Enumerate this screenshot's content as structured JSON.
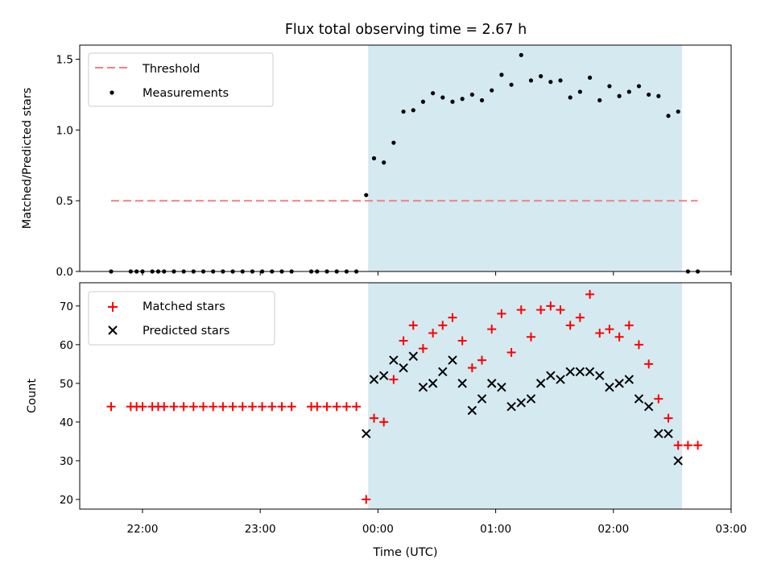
{
  "chart_data": {
    "title": "Flux total observing time = 2.67 h",
    "xlabel": "Time (UTC)",
    "x_ticks": [
      "22:00",
      "23:00",
      "00:00",
      "01:00",
      "02:00",
      "03:00"
    ],
    "x_range": [
      "21:28",
      "03:00"
    ],
    "shaded_interval": [
      "23:55",
      "02:35"
    ],
    "shaded_color": "#d4eaf0",
    "times": [
      "21:44",
      "21:54",
      "21:57",
      "22:00",
      "22:05",
      "22:08",
      "22:11",
      "22:16",
      "22:21",
      "22:26",
      "22:31",
      "22:36",
      "22:41",
      "22:46",
      "22:51",
      "22:56",
      "23:01",
      "23:06",
      "23:11",
      "23:16",
      "23:26",
      "23:29",
      "23:34",
      "23:39",
      "23:44",
      "23:49",
      "23:54",
      "23:58",
      "00:03",
      "00:08",
      "00:13",
      "00:18",
      "00:23",
      "00:28",
      "00:33",
      "00:38",
      "00:43",
      "00:48",
      "00:53",
      "00:58",
      "01:03",
      "01:08",
      "01:13",
      "01:18",
      "01:23",
      "01:28",
      "01:33",
      "01:38",
      "01:43",
      "01:48",
      "01:53",
      "01:58",
      "02:03",
      "02:08",
      "02:13",
      "02:18",
      "02:23",
      "02:28",
      "02:33",
      "02:38",
      "02:43"
    ],
    "plots": [
      {
        "type": "scatter",
        "ylabel": "Matched/Predicted stars",
        "ylim": [
          0,
          1.6
        ],
        "y_ticks": [
          "0.0",
          "0.5",
          "1.0",
          "1.5"
        ],
        "threshold": 0.5,
        "threshold_color": "#f08080",
        "threshold_range": [
          "21:44",
          "02:43"
        ],
        "extra_points": [
          {
            "x": "02:38",
            "y": 0
          },
          {
            "x": "02:43",
            "y": 0
          }
        ],
        "legend": {
          "placement": "upper-left",
          "entries": [
            "Threshold",
            "Measurements"
          ]
        },
        "series": [
          {
            "name": "Threshold",
            "type": "line",
            "color": "#f08080"
          },
          {
            "name": "Measurements",
            "type": "scatter",
            "color": "#000000",
            "values": [
              0,
              0,
              0,
              0,
              0,
              0,
              0,
              0,
              0,
              0,
              0,
              0,
              0,
              0,
              0,
              0,
              0,
              0,
              0,
              0,
              0,
              0,
              0,
              0,
              0,
              0,
              0.54,
              0.8,
              0.77,
              0.91,
              1.13,
              1.14,
              1.2,
              1.26,
              1.23,
              1.2,
              1.22,
              1.25,
              1.21,
              1.28,
              1.39,
              1.32,
              1.53,
              1.35,
              1.38,
              1.34,
              1.35,
              1.23,
              1.27,
              1.37,
              1.21,
              1.31,
              1.24,
              1.27,
              1.31,
              1.25,
              1.24,
              1.1,
              1.13,
              null,
              null
            ]
          }
        ]
      },
      {
        "type": "scatter",
        "ylabel": "Count",
        "ylim": [
          17.5,
          76
        ],
        "y_ticks": [
          "20",
          "30",
          "40",
          "50",
          "60",
          "70"
        ],
        "legend": {
          "placement": "upper-left",
          "entries": [
            "Matched stars",
            "Predicted stars"
          ]
        },
        "series": [
          {
            "name": "Matched stars",
            "marker": "plus",
            "color": "#ff0000",
            "values": [
              44,
              44,
              44,
              44,
              44,
              44,
              44,
              44,
              44,
              44,
              44,
              44,
              44,
              44,
              44,
              44,
              44,
              44,
              44,
              44,
              44,
              44,
              44,
              44,
              44,
              44,
              20,
              41,
              40,
              51,
              61,
              65,
              59,
              63,
              65,
              67,
              61,
              54,
              56,
              64,
              68,
              58,
              69,
              62,
              69,
              70,
              69,
              65,
              67,
              73,
              63,
              64,
              62,
              65,
              60,
              55,
              46,
              41,
              34,
              34,
              34
            ]
          },
          {
            "name": "Predicted stars",
            "marker": "x",
            "color": "#000000",
            "values": [
              null,
              null,
              null,
              null,
              null,
              null,
              null,
              null,
              null,
              null,
              null,
              null,
              null,
              null,
              null,
              null,
              null,
              null,
              null,
              null,
              null,
              null,
              null,
              null,
              null,
              null,
              37,
              51,
              52,
              56,
              54,
              57,
              49,
              50,
              53,
              56,
              50,
              43,
              46,
              50,
              49,
              44,
              45,
              46,
              50,
              52,
              51,
              53,
              53,
              53,
              52,
              49,
              50,
              51,
              46,
              44,
              37,
              37,
              30,
              null,
              null
            ]
          }
        ]
      }
    ]
  }
}
